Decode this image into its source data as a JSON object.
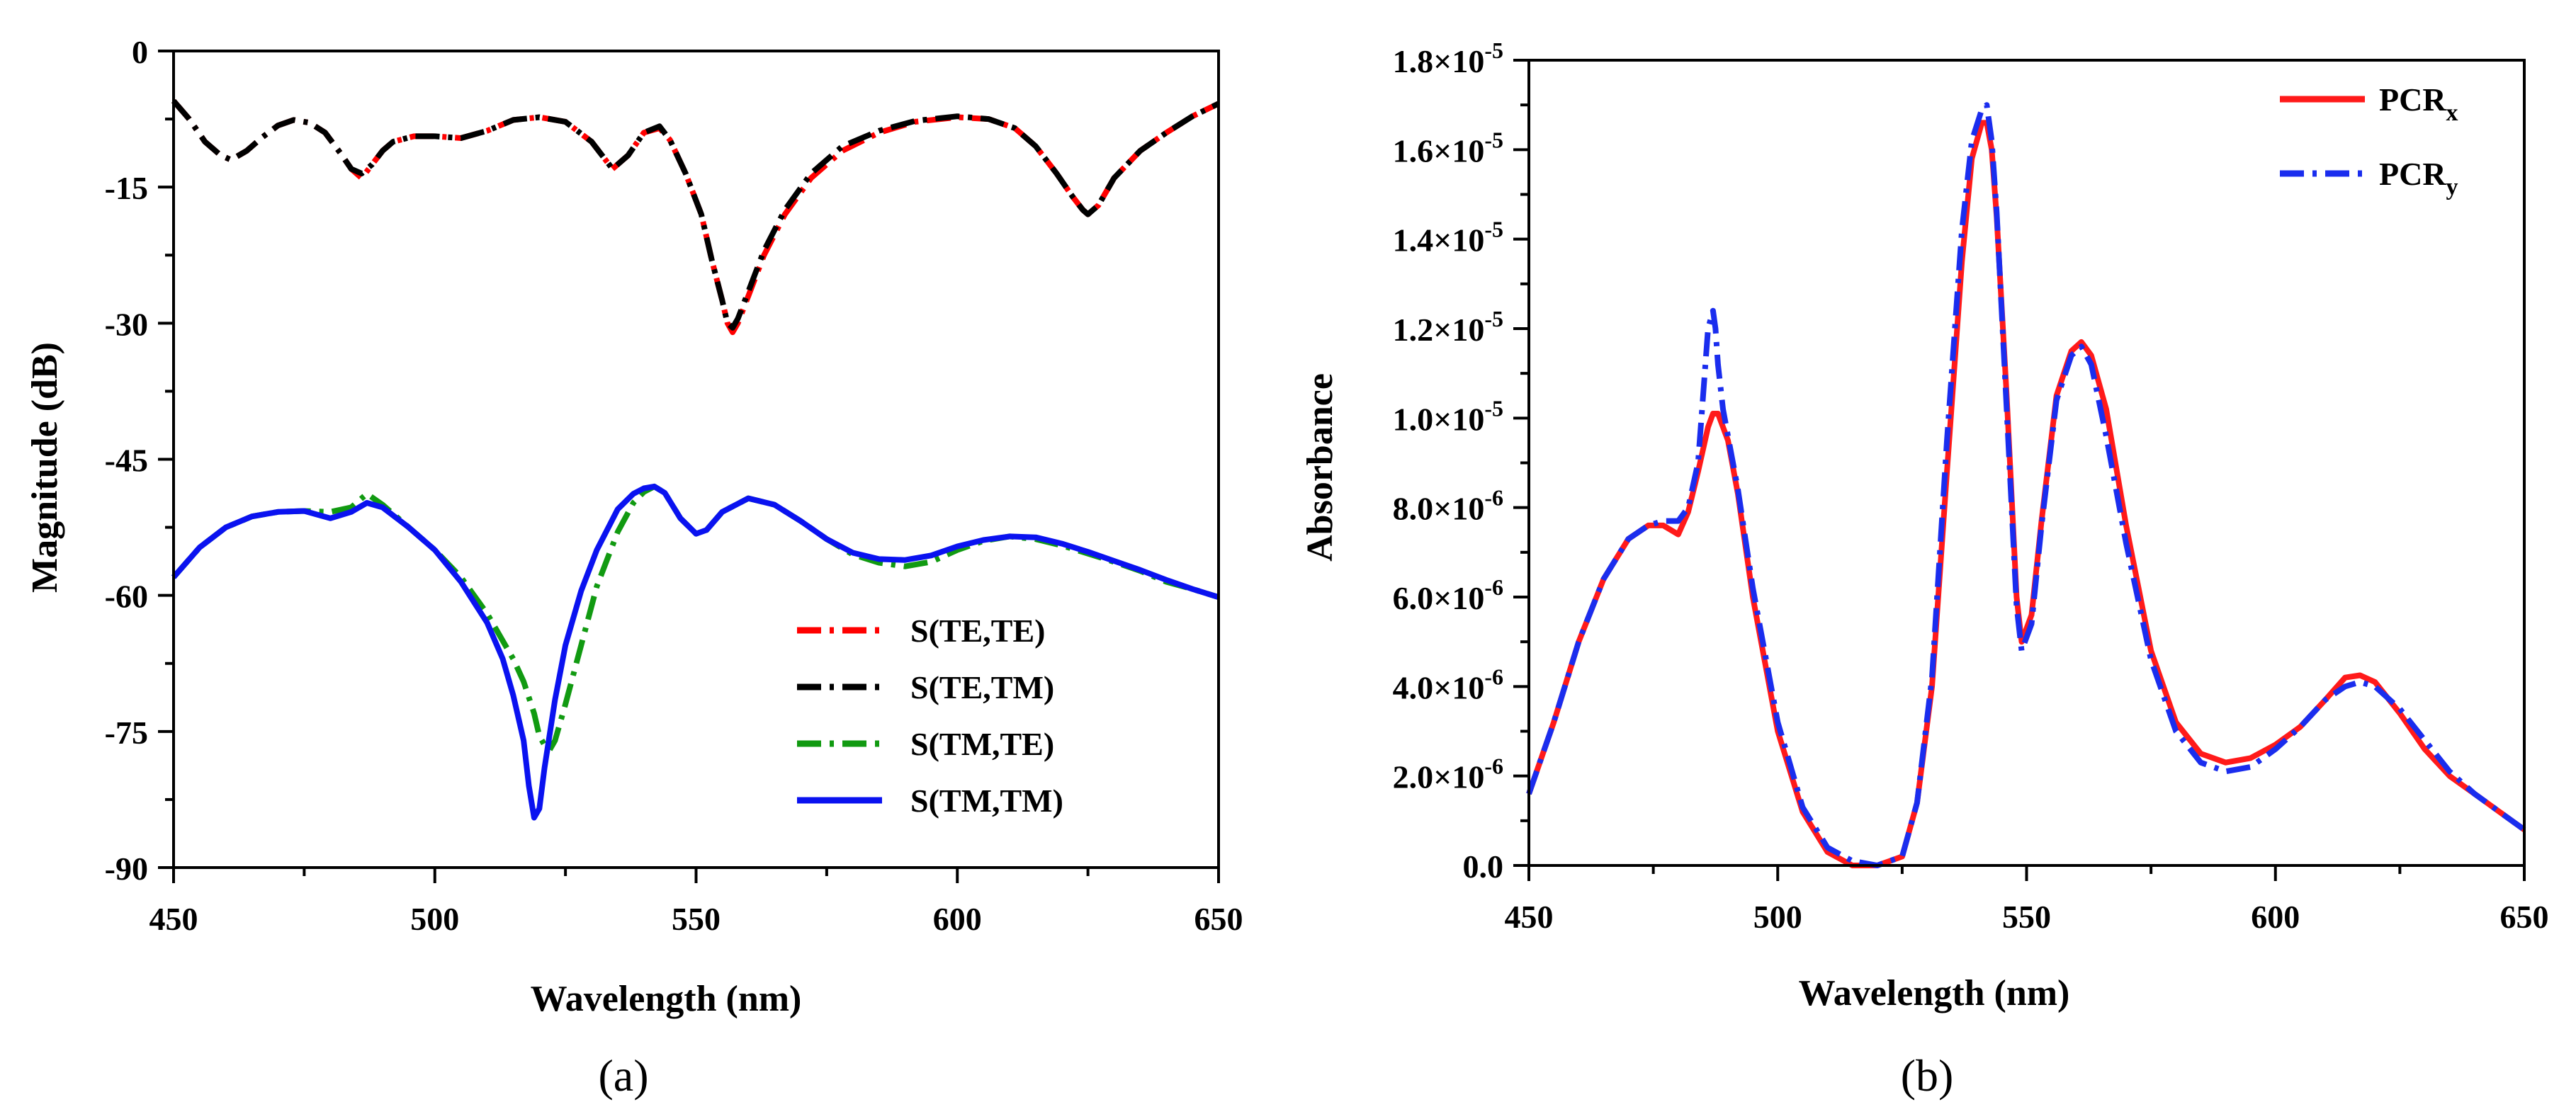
{
  "chart_data": [
    {
      "type": "line",
      "panel_caption": "(a)",
      "xlabel": "Wavelength (nm)",
      "ylabel": "Magnitude (dB)",
      "xlim": [
        450,
        650
      ],
      "ylim": [
        -90,
        0
      ],
      "x_ticks": [
        "450",
        "500",
        "550",
        "600",
        "650"
      ],
      "y_ticks": [
        "0",
        "-15",
        "-30",
        "-45",
        "-60",
        "-75",
        "-90"
      ],
      "legend_position": "bottom-right",
      "series": [
        {
          "name": "S(TE,TE)",
          "color": "#ff0000",
          "style": "dashdot",
          "x": [
            450,
            453,
            456,
            459,
            461,
            464,
            467,
            470,
            473,
            476,
            479,
            482,
            484,
            486,
            488,
            490,
            492,
            496,
            500,
            505,
            510,
            515,
            520,
            525,
            530,
            534,
            537,
            540,
            543,
            545,
            548,
            551,
            553,
            555,
            556,
            557,
            558,
            560,
            563,
            567,
            572,
            578,
            585,
            592,
            600,
            606,
            611,
            615,
            619,
            622,
            624,
            625,
            627,
            630,
            635,
            640,
            645,
            650
          ],
          "y": [
            -5.5,
            -7.5,
            -10,
            -11.5,
            -12,
            -11,
            -9.5,
            -8.2,
            -7.6,
            -7.9,
            -9,
            -11.3,
            -13,
            -14,
            -12.5,
            -11,
            -10,
            -9.4,
            -9.4,
            -9.6,
            -8.8,
            -7.6,
            -7.3,
            -7.8,
            -10,
            -13,
            -11.5,
            -9,
            -8.5,
            -9.8,
            -13.5,
            -18,
            -23,
            -27.5,
            -30,
            -31,
            -30,
            -27,
            -22.5,
            -18,
            -14,
            -11,
            -9,
            -7.8,
            -7.3,
            -7.5,
            -8.5,
            -10.5,
            -13.5,
            -16,
            -17.5,
            -18,
            -17,
            -14,
            -11,
            -9,
            -7.2,
            -5.8
          ]
        },
        {
          "name": "S(TE,TM)",
          "color": "#000000",
          "style": "dashdot",
          "x": [
            450,
            453,
            456,
            459,
            461,
            464,
            467,
            470,
            473,
            476,
            479,
            482,
            484,
            486,
            488,
            490,
            492,
            496,
            500,
            505,
            510,
            515,
            520,
            525,
            530,
            534,
            537,
            540,
            543,
            545,
            548,
            551,
            553,
            555,
            556,
            557,
            558,
            560,
            563,
            567,
            572,
            578,
            585,
            592,
            600,
            606,
            611,
            615,
            619,
            622,
            624,
            625,
            627,
            630,
            635,
            640,
            645,
            650
          ],
          "y": [
            -5.5,
            -7.5,
            -10,
            -11.5,
            -12,
            -11,
            -9.5,
            -8.2,
            -7.6,
            -7.9,
            -9,
            -11.3,
            -13,
            -13.5,
            -12.5,
            -11,
            -10,
            -9.4,
            -9.4,
            -9.6,
            -8.8,
            -7.6,
            -7.3,
            -7.8,
            -10,
            -13,
            -11.5,
            -9,
            -8.3,
            -9.8,
            -13.5,
            -18,
            -23,
            -27.5,
            -30,
            -30.5,
            -29.5,
            -26.5,
            -22,
            -17.5,
            -13.5,
            -10.5,
            -8.8,
            -7.7,
            -7.2,
            -7.5,
            -8.5,
            -10.5,
            -13.5,
            -16,
            -17.5,
            -18,
            -17,
            -14,
            -11,
            -9,
            -7.2,
            -5.8
          ]
        },
        {
          "name": "S(TM,TE)",
          "color": "#119a11",
          "style": "dashdot",
          "x": [
            450,
            455,
            460,
            465,
            470,
            475,
            480,
            484,
            487,
            490,
            495,
            500,
            505,
            510,
            513,
            515,
            517,
            519,
            520,
            521,
            522,
            523,
            525,
            528,
            531,
            535,
            538,
            540,
            542,
            544,
            547,
            550,
            552,
            555,
            560,
            565,
            570,
            575,
            580,
            585,
            590,
            595,
            600,
            605,
            610,
            615,
            620,
            625,
            630,
            635,
            640,
            645,
            650
          ],
          "y": [
            -58,
            -54.7,
            -52.5,
            -51.3,
            -50.8,
            -50.7,
            -50.8,
            -50.3,
            -48.8,
            -50,
            -52.5,
            -55,
            -58,
            -62,
            -65,
            -67,
            -69.5,
            -73,
            -75.5,
            -76.5,
            -77,
            -76,
            -72,
            -65.5,
            -59,
            -53,
            -49.8,
            -48.6,
            -48,
            -48.7,
            -51.5,
            -53.2,
            -52.8,
            -50.8,
            -49.3,
            -50,
            -51.8,
            -53.8,
            -55.5,
            -56.4,
            -56.8,
            -56.3,
            -55,
            -54,
            -53.5,
            -53.8,
            -54.5,
            -55.4,
            -56.3,
            -57.3,
            -58.5,
            -59.3,
            -60.2
          ]
        },
        {
          "name": "S(TM,TM)",
          "color": "#0a12f0",
          "style": "solid",
          "x": [
            450,
            455,
            460,
            465,
            470,
            475,
            480,
            484,
            487,
            490,
            495,
            500,
            505,
            510,
            513,
            515,
            517,
            518,
            519,
            520,
            521,
            523,
            525,
            528,
            531,
            535,
            538,
            540,
            542,
            544,
            547,
            550,
            552,
            555,
            560,
            565,
            570,
            575,
            580,
            585,
            590,
            595,
            600,
            605,
            610,
            615,
            620,
            625,
            630,
            635,
            640,
            645,
            650
          ],
          "y": [
            -58,
            -54.7,
            -52.5,
            -51.3,
            -50.8,
            -50.7,
            -51.5,
            -50.8,
            -49.8,
            -50.3,
            -52.5,
            -55,
            -58.5,
            -63,
            -67,
            -71,
            -76,
            -81,
            -84.5,
            -83.5,
            -79,
            -71.5,
            -65.5,
            -59.5,
            -55,
            -50.5,
            -48.8,
            -48.2,
            -48,
            -48.7,
            -51.5,
            -53.2,
            -52.8,
            -50.8,
            -49.3,
            -50,
            -51.8,
            -53.8,
            -55.3,
            -56,
            -56.1,
            -55.6,
            -54.6,
            -53.9,
            -53.5,
            -53.6,
            -54.3,
            -55.2,
            -56.2,
            -57.2,
            -58.3,
            -59.3,
            -60.2
          ]
        }
      ]
    },
    {
      "type": "line",
      "panel_caption": "(b)",
      "xlabel": "Wavelength (nm)",
      "ylabel": "Absorbance",
      "xlim": [
        450,
        650
      ],
      "ylim": [
        0,
        1.8e-05
      ],
      "x_ticks": [
        "450",
        "500",
        "550",
        "600",
        "650"
      ],
      "y_ticks": [
        {
          "mant": "0.0",
          "exp": ""
        },
        {
          "mant": "2.0×10",
          "exp": "-6"
        },
        {
          "mant": "4.0×10",
          "exp": "-6"
        },
        {
          "mant": "6.0×10",
          "exp": "-6"
        },
        {
          "mant": "8.0×10",
          "exp": "-6"
        },
        {
          "mant": "1.0×10",
          "exp": "-5"
        },
        {
          "mant": "1.2×10",
          "exp": "-5"
        },
        {
          "mant": "1.4×10",
          "exp": "-5"
        },
        {
          "mant": "1.6×10",
          "exp": "-5"
        },
        {
          "mant": "1.8×10",
          "exp": "-5"
        }
      ],
      "legend_position": "top-right",
      "series": [
        {
          "name": "PCR",
          "subscript": "x",
          "color": "#ff1a1a",
          "style": "solid",
          "x": [
            450,
            455,
            460,
            465,
            470,
            474,
            477,
            480,
            482,
            484,
            486,
            487,
            488,
            490,
            492,
            495,
            500,
            505,
            510,
            515,
            520,
            525,
            528,
            531,
            534,
            537,
            539,
            541,
            542,
            543,
            544,
            546,
            548,
            549,
            551,
            553,
            556,
            559,
            561,
            563,
            566,
            570,
            575,
            580,
            585,
            590,
            595,
            600,
            605,
            610,
            614,
            617,
            620,
            625,
            630,
            635,
            640,
            645,
            650
          ],
          "y": [
            1.6e-06,
            3.2e-06,
            5e-06,
            6.4e-06,
            7.3e-06,
            7.6e-06,
            7.6e-06,
            7.4e-06,
            7.9e-06,
            8.8e-06,
            9.8e-06,
            1.01e-05,
            1.01e-05,
            9.5e-06,
            8.3e-06,
            6e-06,
            3e-06,
            1.2e-06,
            3e-07,
            0,
            0,
            2e-07,
            1.4e-06,
            4e-06,
            8.8e-06,
            1.35e-05,
            1.58e-05,
            1.66e-05,
            1.66e-05,
            1.6e-05,
            1.45e-05,
            1.05e-05,
            6e-06,
            5e-06,
            5.6e-06,
            7.7e-06,
            1.05e-05,
            1.15e-05,
            1.17e-05,
            1.14e-05,
            1.02e-05,
            7.6e-06,
            4.8e-06,
            3.2e-06,
            2.5e-06,
            2.3e-06,
            2.4e-06,
            2.7e-06,
            3.1e-06,
            3.7e-06,
            4.2e-06,
            4.25e-06,
            4.1e-06,
            3.4e-06,
            2.6e-06,
            2e-06,
            1.6e-06,
            1.2e-06,
            8e-07
          ]
        },
        {
          "name": "PCR",
          "subscript": "y",
          "color": "#1a2dee",
          "style": "dashdot",
          "x": [
            450,
            455,
            460,
            465,
            470,
            474,
            477,
            480,
            482,
            484,
            485,
            486,
            487,
            487.5,
            488,
            489,
            490,
            492,
            495,
            500,
            505,
            510,
            515,
            520,
            525,
            528,
            531,
            534,
            537,
            539,
            541,
            542,
            543,
            544,
            546,
            548,
            549,
            551,
            553,
            556,
            559,
            561,
            563,
            566,
            570,
            575,
            580,
            585,
            590,
            595,
            600,
            605,
            610,
            614,
            617,
            620,
            625,
            630,
            635,
            640,
            645,
            650
          ],
          "y": [
            1.6e-06,
            3.2e-06,
            5e-06,
            6.4e-06,
            7.3e-06,
            7.6e-06,
            7.7e-06,
            7.7e-06,
            8e-06,
            9e-06,
            1.05e-05,
            1.2e-05,
            1.24e-05,
            1.2e-05,
            1.12e-05,
            1.02e-05,
            9.6e-06,
            8.4e-06,
            6.2e-06,
            3.2e-06,
            1.3e-06,
            4e-07,
            1e-07,
            0,
            2e-07,
            1.4e-06,
            4.2e-06,
            9.5e-06,
            1.42e-05,
            1.62e-05,
            1.69e-05,
            1.7e-05,
            1.62e-05,
            1.46e-05,
            1.02e-05,
            5.8e-06,
            4.8e-06,
            5.4e-06,
            7.6e-06,
            1.04e-05,
            1.14e-05,
            1.16e-05,
            1.12e-05,
            9.6e-06,
            7.2e-06,
            4.6e-06,
            3e-06,
            2.3e-06,
            2.1e-06,
            2.2e-06,
            2.6e-06,
            3.1e-06,
            3.7e-06,
            4e-06,
            4.1e-06,
            4e-06,
            3.5e-06,
            2.8e-06,
            2.1e-06,
            1.6e-06,
            1.2e-06,
            8e-07
          ]
        }
      ]
    }
  ]
}
